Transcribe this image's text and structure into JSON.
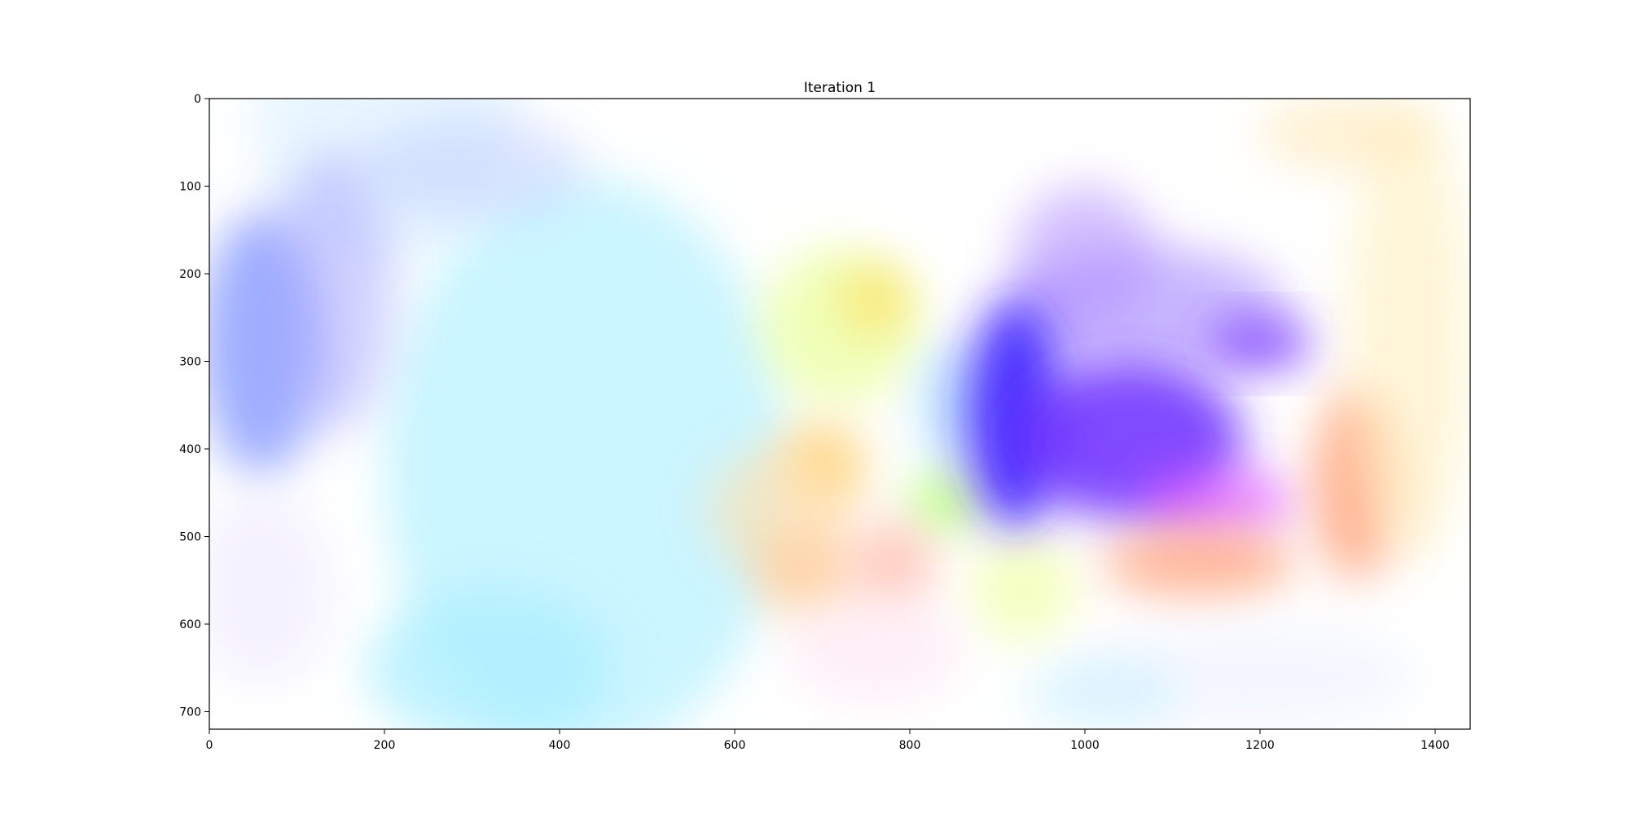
{
  "chart_data": {
    "type": "heatmap",
    "title": "Iteration 1",
    "xlabel": "",
    "ylabel": "",
    "xlim": [
      0,
      1440
    ],
    "ylim": [
      720,
      0
    ],
    "x_ticks": [
      0,
      200,
      400,
      600,
      800,
      1000,
      1200,
      1400
    ],
    "y_ticks": [
      0,
      100,
      200,
      300,
      400,
      500,
      600,
      700
    ],
    "grid": false,
    "colormap": "optical-flow color wheel (hue = direction, saturation = magnitude)",
    "background_color": "#ffffff",
    "regions": [
      {
        "x": 200,
        "y": 30,
        "rx": 150,
        "ry": 160,
        "color": "#bfe6ff",
        "alpha": 0.35
      },
      {
        "x": 430,
        "y": 420,
        "rx": 230,
        "ry": 330,
        "color": "#c8f4ff",
        "alpha": 0.95
      },
      {
        "x": 320,
        "y": 650,
        "rx": 140,
        "ry": 90,
        "color": "#a8eeff",
        "alpha": 0.7
      },
      {
        "x": 60,
        "y": 280,
        "rx": 70,
        "ry": 150,
        "color": "#7f93ff",
        "alpha": 0.75
      },
      {
        "x": 140,
        "y": 220,
        "rx": 70,
        "ry": 160,
        "color": "#a6a6ff",
        "alpha": 0.5
      },
      {
        "x": 60,
        "y": 560,
        "rx": 80,
        "ry": 110,
        "color": "#efeaff",
        "alpha": 0.6
      },
      {
        "x": 300,
        "y": 80,
        "rx": 130,
        "ry": 60,
        "color": "#b8c8ff",
        "alpha": 0.45
      },
      {
        "x": 720,
        "y": 260,
        "rx": 90,
        "ry": 90,
        "color": "#e8ff9a",
        "alpha": 0.7
      },
      {
        "x": 760,
        "y": 230,
        "rx": 40,
        "ry": 40,
        "color": "#ffe066",
        "alpha": 0.75
      },
      {
        "x": 700,
        "y": 420,
        "rx": 50,
        "ry": 50,
        "color": "#ffd070",
        "alpha": 0.8
      },
      {
        "x": 650,
        "y": 470,
        "rx": 80,
        "ry": 70,
        "color": "#ffe0b0",
        "alpha": 0.65
      },
      {
        "x": 840,
        "y": 460,
        "rx": 40,
        "ry": 35,
        "color": "#b4ff70",
        "alpha": 0.8
      },
      {
        "x": 850,
        "y": 350,
        "rx": 40,
        "ry": 70,
        "color": "#9ad8ff",
        "alpha": 0.6
      },
      {
        "x": 680,
        "y": 540,
        "rx": 60,
        "ry": 50,
        "color": "#ffc890",
        "alpha": 0.7
      },
      {
        "x": 780,
        "y": 530,
        "rx": 50,
        "ry": 50,
        "color": "#ffb8a8",
        "alpha": 0.7
      },
      {
        "x": 930,
        "y": 560,
        "rx": 60,
        "ry": 60,
        "color": "#eeff99",
        "alpha": 0.6
      },
      {
        "x": 760,
        "y": 630,
        "rx": 100,
        "ry": 60,
        "color": "#ffe0f0",
        "alpha": 0.5
      },
      {
        "x": 1070,
        "y": 240,
        "rx": 160,
        "ry": 70,
        "color": "#9a7bff",
        "alpha": 0.55
      },
      {
        "x": 1000,
        "y": 180,
        "rx": 80,
        "ry": 80,
        "color": "#b08cff",
        "alpha": 0.55
      },
      {
        "x": 920,
        "y": 360,
        "rx": 55,
        "ry": 130,
        "color": "#3a1fff",
        "alpha": 0.9
      },
      {
        "x": 1050,
        "y": 390,
        "rx": 130,
        "ry": 90,
        "color": "#6a2cff",
        "alpha": 0.85
      },
      {
        "x": 1200,
        "y": 280,
        "rx": 60,
        "ry": 30,
        "color": "#7a3aff",
        "alpha": 0.8
      },
      {
        "x": 1150,
        "y": 460,
        "rx": 90,
        "ry": 40,
        "color": "#e050ff",
        "alpha": 0.65
      },
      {
        "x": 1130,
        "y": 530,
        "rx": 110,
        "ry": 40,
        "color": "#ff9a70",
        "alpha": 0.7
      },
      {
        "x": 1310,
        "y": 440,
        "rx": 50,
        "ry": 110,
        "color": "#ff9a70",
        "alpha": 0.75
      },
      {
        "x": 1370,
        "y": 270,
        "rx": 70,
        "ry": 260,
        "color": "#fff0c0",
        "alpha": 0.6
      },
      {
        "x": 1300,
        "y": 40,
        "rx": 100,
        "ry": 40,
        "color": "#ffe6b0",
        "alpha": 0.6
      },
      {
        "x": 1180,
        "y": 660,
        "rx": 200,
        "ry": 60,
        "color": "#eef2ff",
        "alpha": 0.6
      },
      {
        "x": 1020,
        "y": 680,
        "rx": 90,
        "ry": 40,
        "color": "#c8f0ff",
        "alpha": 0.6
      }
    ]
  }
}
